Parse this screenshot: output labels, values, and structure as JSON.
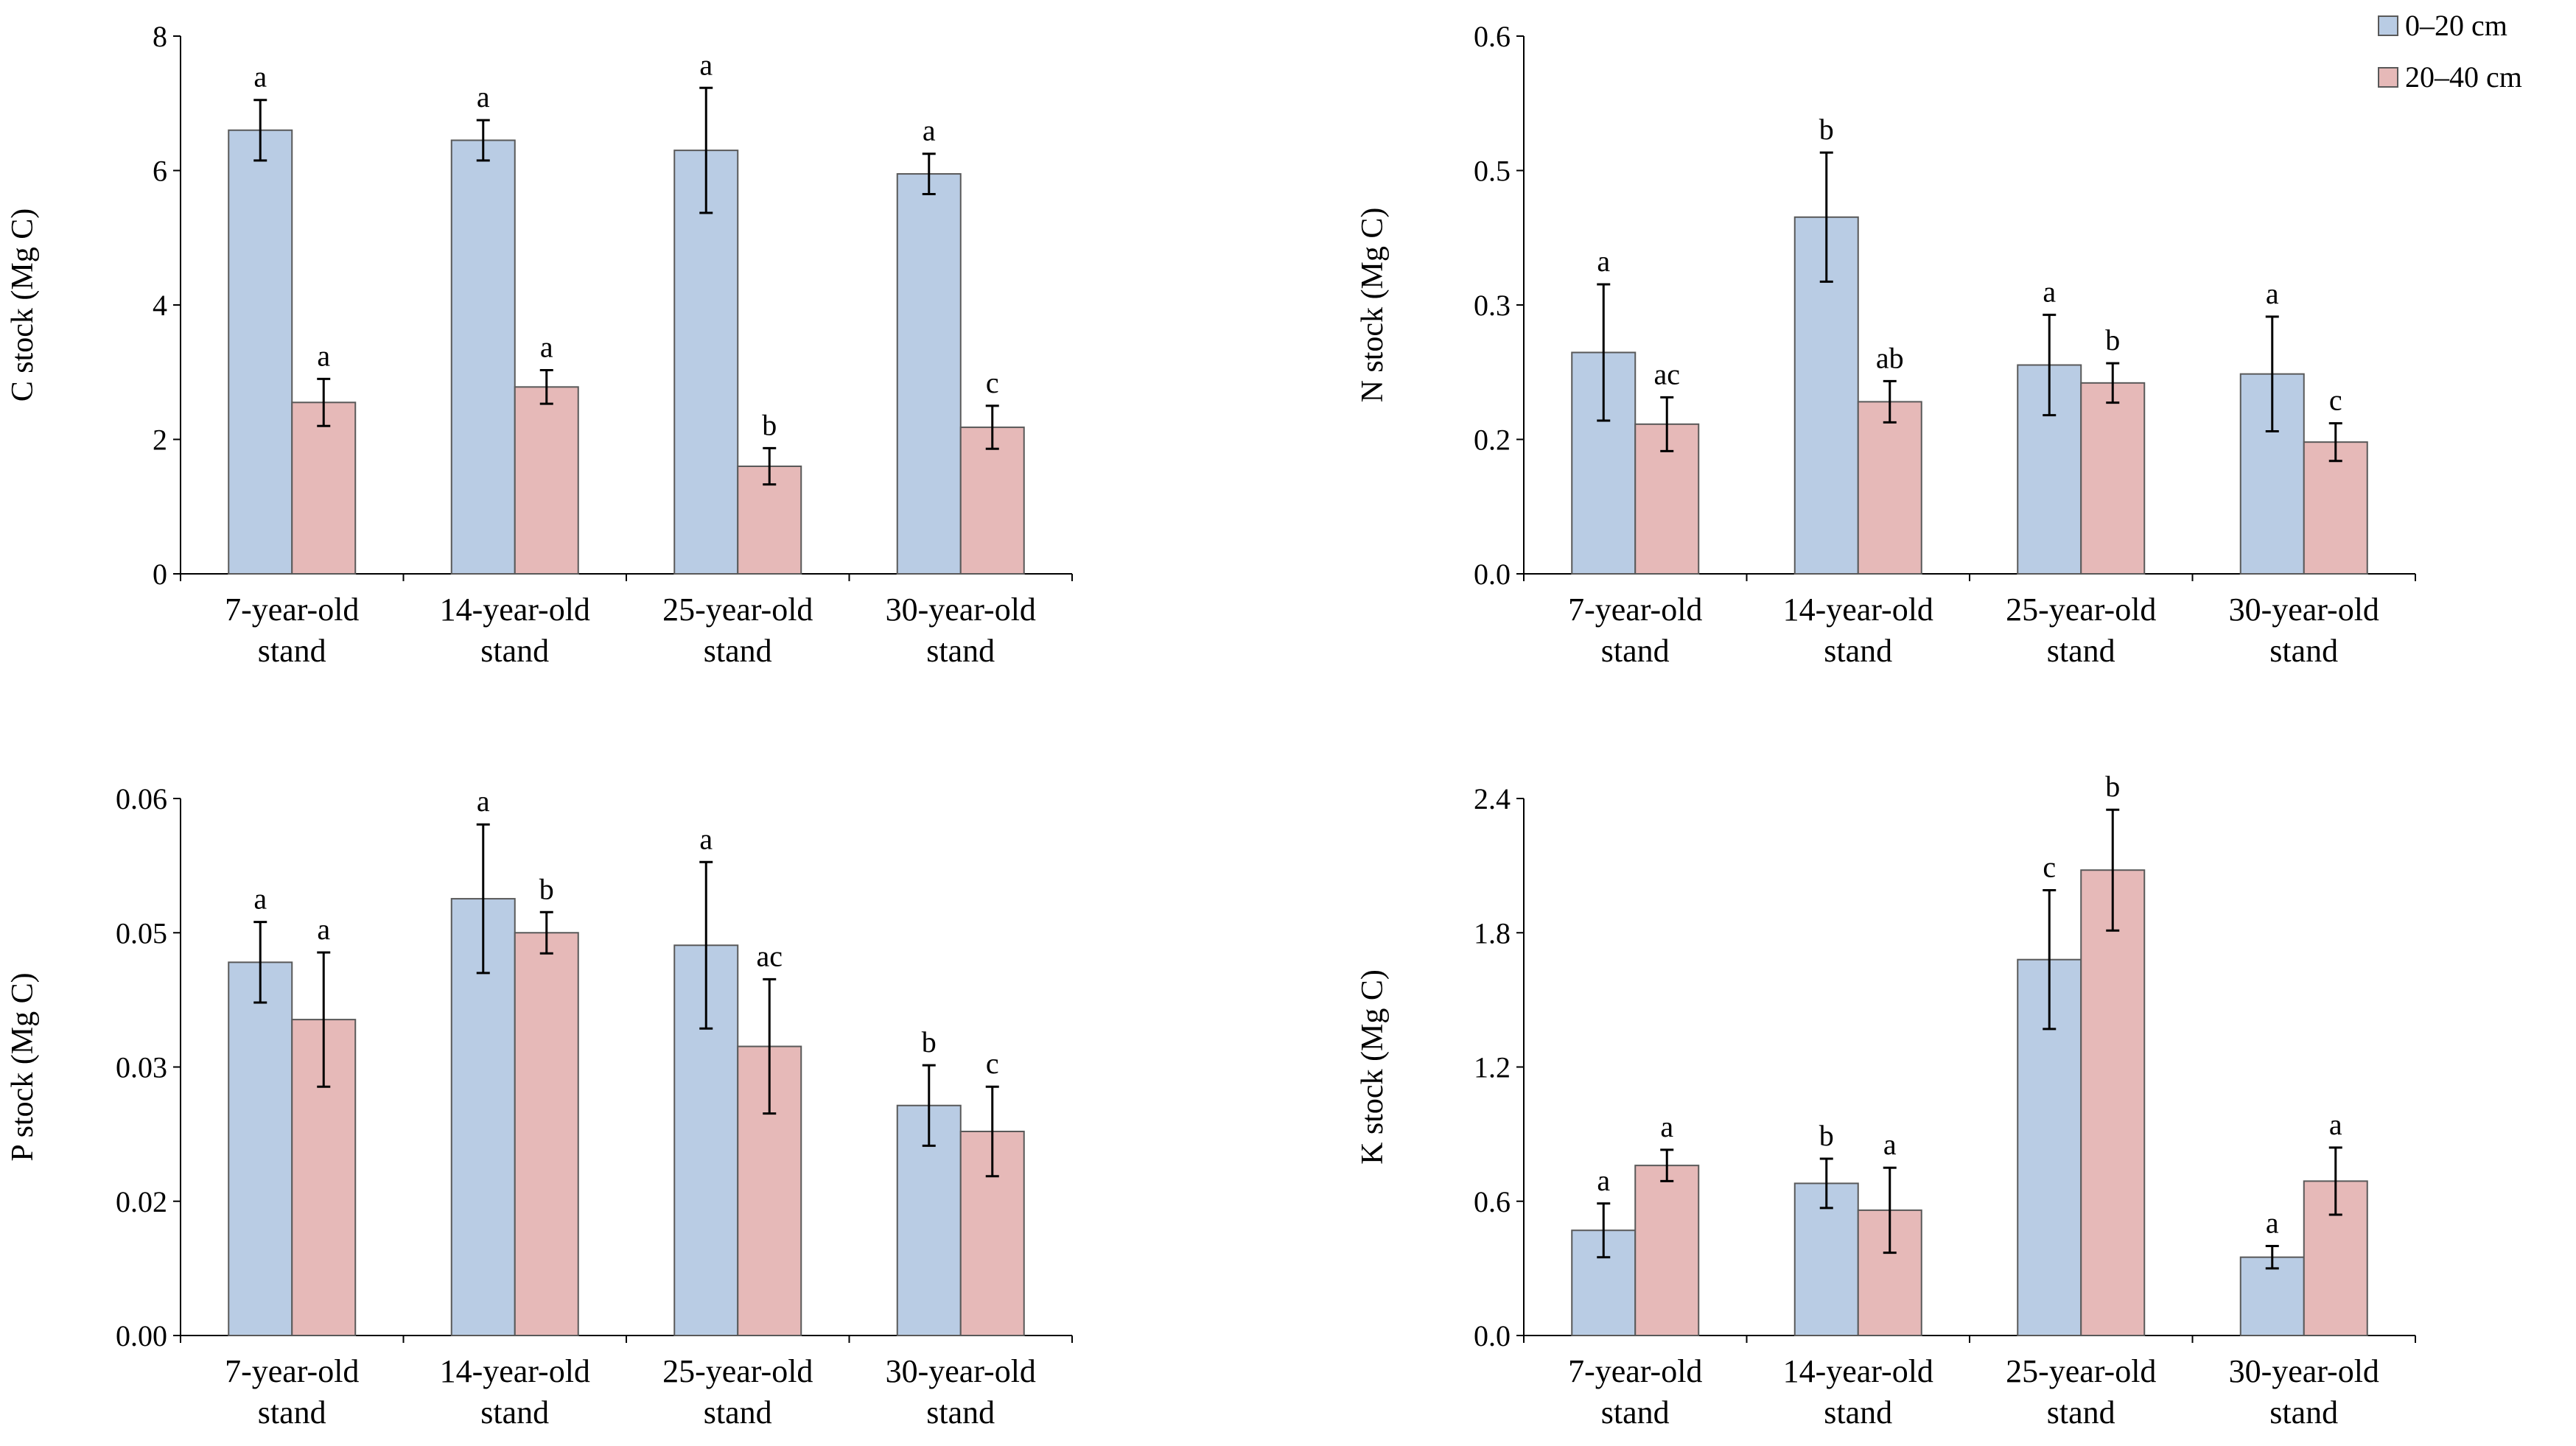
{
  "colors": {
    "series_0_20": "#b9cce4",
    "series_20_40": "#e6b9b8",
    "bar_edge": "#595959",
    "axis": "#000000"
  },
  "legend": {
    "items": [
      {
        "name": "0–20 cm",
        "color_key": "series_0_20"
      },
      {
        "name": "20–40 cm",
        "color_key": "series_20_40"
      }
    ]
  },
  "chart_data": [
    {
      "id": "c-stock",
      "type": "bar",
      "title": "",
      "xlabel": "",
      "ylabel": "C stock (Mg C)",
      "ylim": [
        0,
        8
      ],
      "yticks": [
        0,
        2,
        4,
        6,
        8
      ],
      "ytick_labels": [
        "0",
        "2",
        "4",
        "6",
        "8"
      ],
      "categories": [
        [
          "7-year-old",
          "stand"
        ],
        [
          "14-year-old",
          "stand"
        ],
        [
          "25-year-old",
          "stand"
        ],
        [
          "30-year-old",
          "stand"
        ]
      ],
      "series": [
        {
          "name": "0–20 cm",
          "values": [
            6.6,
            6.45,
            6.3,
            5.95
          ],
          "errors": [
            0.45,
            0.3,
            0.93,
            0.3
          ],
          "labels": [
            "a",
            "a",
            "a",
            "a"
          ]
        },
        {
          "name": "20–40 cm",
          "values": [
            2.55,
            2.78,
            1.6,
            2.18
          ],
          "errors": [
            0.35,
            0.25,
            0.27,
            0.32
          ],
          "labels": [
            "a",
            "a",
            "b",
            "c"
          ]
        }
      ]
    },
    {
      "id": "n-stock",
      "type": "bar",
      "title": "",
      "xlabel": "",
      "ylabel": "N stock (Mg C)",
      "ylim": [
        0,
        0.6
      ],
      "yticks": [
        0,
        0.15,
        0.3,
        0.45,
        0.6
      ],
      "ytick_labels": [
        "0.0",
        "0.2",
        "0.3",
        "0.5",
        "0.6"
      ],
      "categories": [
        [
          "7-year-old",
          "stand"
        ],
        [
          "14-year-old",
          "stand"
        ],
        [
          "25-year-old",
          "stand"
        ],
        [
          "30-year-old",
          "stand"
        ]
      ],
      "series": [
        {
          "name": "0–20 cm",
          "values": [
            0.247,
            0.398,
            0.233,
            0.223
          ],
          "errors": [
            0.076,
            0.072,
            0.056,
            0.064
          ],
          "labels": [
            "a",
            "b",
            "a",
            "a"
          ]
        },
        {
          "name": "20–40 cm",
          "values": [
            0.167,
            0.192,
            0.213,
            0.147
          ],
          "errors": [
            0.03,
            0.023,
            0.022,
            0.021
          ],
          "labels": [
            "ac",
            "ab",
            "b",
            "c"
          ]
        }
      ]
    },
    {
      "id": "p-stock",
      "type": "bar",
      "title": "",
      "xlabel": "",
      "ylabel": "P stock (Mg C)",
      "ylim": [
        0,
        0.06
      ],
      "yticks": [
        0,
        0.015,
        0.03,
        0.045,
        0.06
      ],
      "ytick_labels": [
        "0.00",
        "0.02",
        "0.03",
        "0.05",
        "0.06"
      ],
      "categories": [
        [
          "7-year-old",
          "stand"
        ],
        [
          "14-year-old",
          "stand"
        ],
        [
          "25-year-old",
          "stand"
        ],
        [
          "30-year-old",
          "stand"
        ]
      ],
      "series": [
        {
          "name": "0–20 cm",
          "values": [
            0.0417,
            0.0488,
            0.0436,
            0.0257
          ],
          "errors": [
            0.0045,
            0.0083,
            0.0093,
            0.0045
          ],
          "labels": [
            "a",
            "a",
            "a",
            "b"
          ]
        },
        {
          "name": "20–40 cm",
          "values": [
            0.0353,
            0.045,
            0.0323,
            0.0228
          ],
          "errors": [
            0.0075,
            0.0023,
            0.0075,
            0.005
          ],
          "labels": [
            "a",
            "b",
            "ac",
            "c"
          ]
        }
      ]
    },
    {
      "id": "k-stock",
      "type": "bar",
      "title": "",
      "xlabel": "",
      "ylabel": "K stock (Mg C)",
      "ylim": [
        0,
        2.4
      ],
      "yticks": [
        0,
        0.6,
        1.2,
        1.8,
        2.4
      ],
      "ytick_labels": [
        "0.0",
        "0.6",
        "1.2",
        "1.8",
        "2.4"
      ],
      "categories": [
        [
          "7-year-old",
          "stand"
        ],
        [
          "14-year-old",
          "stand"
        ],
        [
          "25-year-old",
          "stand"
        ],
        [
          "30-year-old",
          "stand"
        ]
      ],
      "series": [
        {
          "name": "0–20 cm",
          "values": [
            0.47,
            0.68,
            1.68,
            0.35
          ],
          "errors": [
            0.12,
            0.11,
            0.31,
            0.05
          ],
          "labels": [
            "a",
            "b",
            "c",
            "a"
          ]
        },
        {
          "name": "20–40 cm",
          "values": [
            0.76,
            0.56,
            2.08,
            0.69
          ],
          "errors": [
            0.07,
            0.19,
            0.27,
            0.15
          ],
          "labels": [
            "a",
            "a",
            "b",
            "a"
          ]
        }
      ]
    }
  ]
}
